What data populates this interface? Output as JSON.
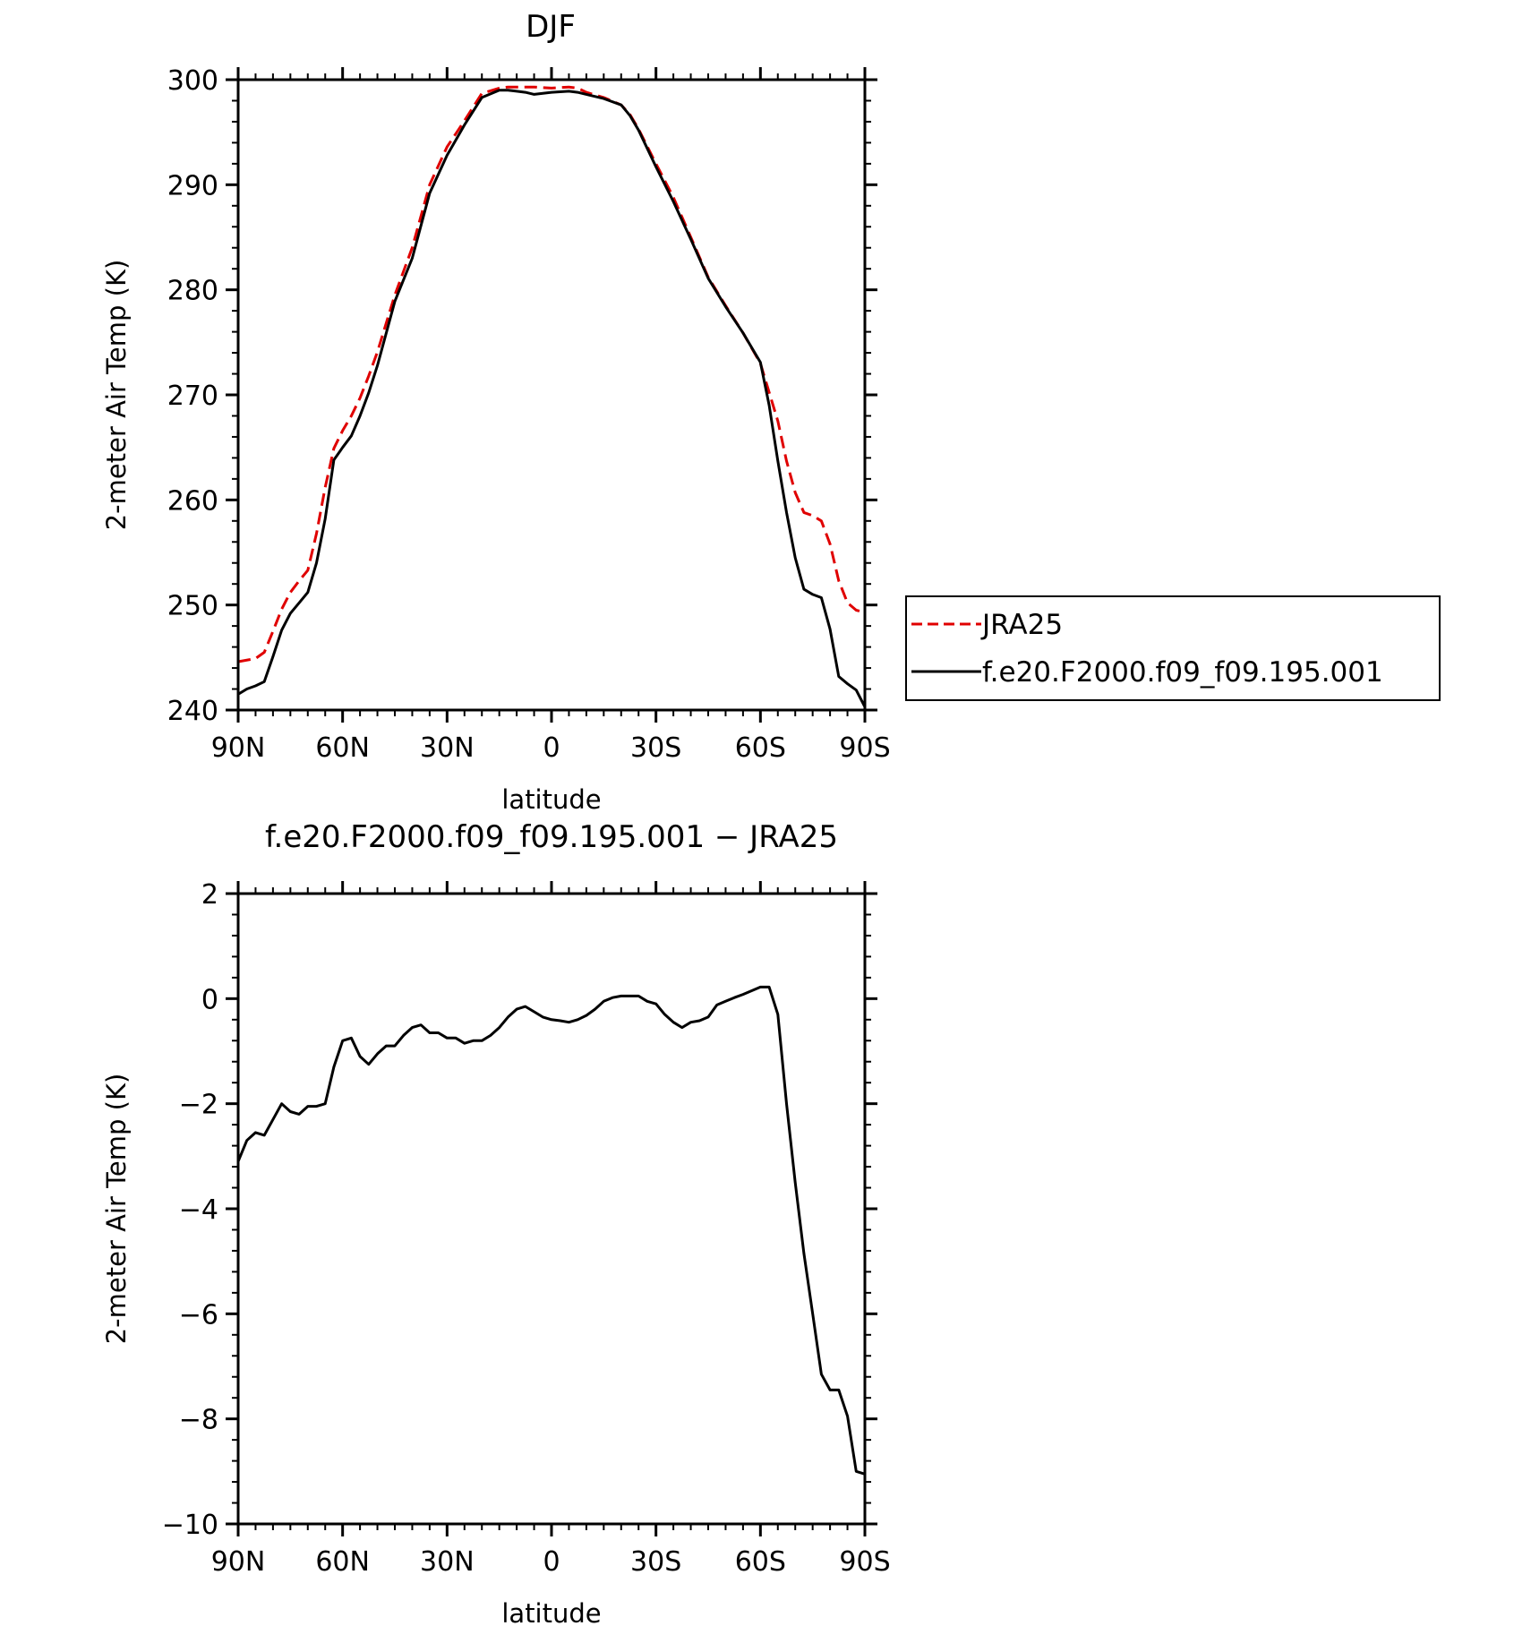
{
  "chart_data": [
    {
      "type": "line",
      "title": "DJF",
      "xlabel": "latitude",
      "ylabel": "2-meter Air Temp (K)",
      "xlim": [
        -90,
        90
      ],
      "ylim": [
        240,
        300
      ],
      "xticks": [
        {
          "value": -90,
          "label": "90N"
        },
        {
          "value": -60,
          "label": "60N"
        },
        {
          "value": -30,
          "label": "30N"
        },
        {
          "value": 0,
          "label": "0"
        },
        {
          "value": 30,
          "label": "30S"
        },
        {
          "value": 60,
          "label": "60S"
        },
        {
          "value": 90,
          "label": "90S"
        }
      ],
      "yticks": [
        {
          "value": 240,
          "label": "240"
        },
        {
          "value": 250,
          "label": "250"
        },
        {
          "value": 260,
          "label": "260"
        },
        {
          "value": 270,
          "label": "270"
        },
        {
          "value": 280,
          "label": "280"
        },
        {
          "value": 290,
          "label": "290"
        },
        {
          "value": 300,
          "label": "300"
        }
      ],
      "legend_position": "right",
      "series": [
        {
          "name": "JRA25",
          "color": "#e00000",
          "style": "dashed",
          "x": [
            -90,
            -85,
            -82.5,
            -80,
            -77.5,
            -75,
            -72.5,
            -70,
            -67.5,
            -65,
            -62.5,
            -60,
            -57.5,
            -55,
            -52.5,
            -50,
            -45,
            -40,
            -35,
            -30,
            -25,
            -20,
            -15,
            -12.5,
            -10,
            -7.5,
            -5,
            0,
            5,
            7.5,
            10,
            15,
            20,
            22.5,
            25,
            30,
            35,
            40,
            45,
            50,
            55,
            60,
            65,
            67.5,
            70,
            72.5,
            75,
            77.5,
            80,
            82.5,
            85,
            87.5,
            90
          ],
          "y": [
            244.6,
            244.9,
            245.5,
            247.5,
            249.6,
            251.2,
            252.3,
            253.3,
            256.8,
            261.2,
            264.9,
            266.6,
            268.0,
            269.7,
            271.8,
            274.1,
            279.5,
            284.0,
            290.0,
            293.6,
            296.1,
            298.7,
            299.2,
            299.3,
            299.3,
            299.3,
            299.3,
            299.2,
            299.3,
            299.2,
            298.8,
            298.3,
            297.6,
            296.7,
            295.3,
            292.0,
            288.8,
            285.0,
            281.2,
            278.5,
            275.9,
            273.0,
            267.5,
            263.7,
            260.7,
            258.8,
            258.5,
            258.0,
            255.8,
            252.3,
            250.2,
            249.5,
            249.3
          ]
        },
        {
          "name": "f.e20.F2000.f09_f09.195.001",
          "color": "#000000",
          "style": "solid",
          "x": [
            -90,
            -87.5,
            -85,
            -82.5,
            -80,
            -77.5,
            -75,
            -72.5,
            -70,
            -67.5,
            -65,
            -62.5,
            -60,
            -57.5,
            -55,
            -52.5,
            -50,
            -45,
            -40,
            -35,
            -30,
            -25,
            -20,
            -15,
            -12.5,
            -10,
            -7.5,
            -5,
            -2.5,
            0,
            5,
            7.5,
            10,
            15,
            20,
            22.5,
            25,
            30,
            35,
            40,
            45,
            50,
            55,
            60,
            62.5,
            65,
            67.5,
            70,
            72.5,
            75,
            77.5,
            80,
            82.5,
            85,
            87.5,
            90
          ],
          "y": [
            241.5,
            242.0,
            242.3,
            242.7,
            245.1,
            247.6,
            249.2,
            250.2,
            251.2,
            254.0,
            258.2,
            263.8,
            265.0,
            266.1,
            268.0,
            270.2,
            272.8,
            278.9,
            283.0,
            289.2,
            292.8,
            295.7,
            298.3,
            299.0,
            299.0,
            298.9,
            298.8,
            298.6,
            298.7,
            298.8,
            298.9,
            298.8,
            298.6,
            298.2,
            297.6,
            296.6,
            295.2,
            291.7,
            288.4,
            284.8,
            281.1,
            278.4,
            275.9,
            273.1,
            269.0,
            263.7,
            258.8,
            254.5,
            251.5,
            251.0,
            250.7,
            247.7,
            243.2,
            242.5,
            241.9,
            240.3
          ]
        }
      ]
    },
    {
      "type": "line",
      "title": "f.e20.F2000.f09_f09.195.001 − JRA25",
      "xlabel": "latitude",
      "ylabel": "2-meter Air Temp (K)",
      "xlim": [
        -90,
        90
      ],
      "ylim": [
        -10,
        2
      ],
      "xticks": [
        {
          "value": -90,
          "label": "90N"
        },
        {
          "value": -60,
          "label": "60N"
        },
        {
          "value": -30,
          "label": "30N"
        },
        {
          "value": 0,
          "label": "0"
        },
        {
          "value": 30,
          "label": "30S"
        },
        {
          "value": 60,
          "label": "60S"
        },
        {
          "value": 90,
          "label": "90S"
        }
      ],
      "yticks": [
        {
          "value": 2,
          "label": "2"
        },
        {
          "value": 0,
          "label": "0"
        },
        {
          "value": -2,
          "label": "−2"
        },
        {
          "value": -4,
          "label": "−4"
        },
        {
          "value": -6,
          "label": "−6"
        },
        {
          "value": -8,
          "label": "−8"
        },
        {
          "value": -10,
          "label": "−10"
        }
      ],
      "series": [
        {
          "color": "#000000",
          "style": "solid",
          "x": [
            -90,
            -87.5,
            -85,
            -82.5,
            -80,
            -77.5,
            -75,
            -72.5,
            -70,
            -67.5,
            -65,
            -62.5,
            -60,
            -57.5,
            -55,
            -52.5,
            -50,
            -47.5,
            -45,
            -42.5,
            -40,
            -37.5,
            -35,
            -32.5,
            -30,
            -27.5,
            -25,
            -22.5,
            -20,
            -17.5,
            -15,
            -12.5,
            -10,
            -7.5,
            -5,
            -2.5,
            0,
            2.5,
            5,
            7.5,
            10,
            12.5,
            15,
            17.5,
            20,
            22.5,
            25,
            27.5,
            30,
            32.5,
            35,
            37.5,
            40,
            42.5,
            45,
            47.5,
            50,
            52.5,
            55,
            57.5,
            60,
            62.5,
            65,
            67.5,
            70,
            72.5,
            75,
            77.5,
            80,
            82.5,
            85,
            87.5,
            90
          ],
          "y": [
            -3.1,
            -2.7,
            -2.55,
            -2.6,
            -2.3,
            -2.0,
            -2.15,
            -2.2,
            -2.05,
            -2.05,
            -2.0,
            -1.3,
            -0.8,
            -0.75,
            -1.1,
            -1.25,
            -1.05,
            -0.9,
            -0.9,
            -0.7,
            -0.55,
            -0.5,
            -0.65,
            -0.65,
            -0.75,
            -0.75,
            -0.85,
            -0.8,
            -0.8,
            -0.7,
            -0.55,
            -0.35,
            -0.2,
            -0.15,
            -0.25,
            -0.35,
            -0.4,
            -0.42,
            -0.45,
            -0.4,
            -0.32,
            -0.2,
            -0.05,
            0.02,
            0.05,
            0.05,
            0.05,
            -0.05,
            -0.1,
            -0.3,
            -0.45,
            -0.55,
            -0.45,
            -0.42,
            -0.35,
            -0.12,
            -0.05,
            0.02,
            0.08,
            0.15,
            0.22,
            0.22,
            -0.3,
            -2.0,
            -3.5,
            -4.85,
            -6.0,
            -7.15,
            -7.45,
            -7.45,
            -7.95,
            -9.0,
            -9.05
          ]
        }
      ]
    }
  ]
}
